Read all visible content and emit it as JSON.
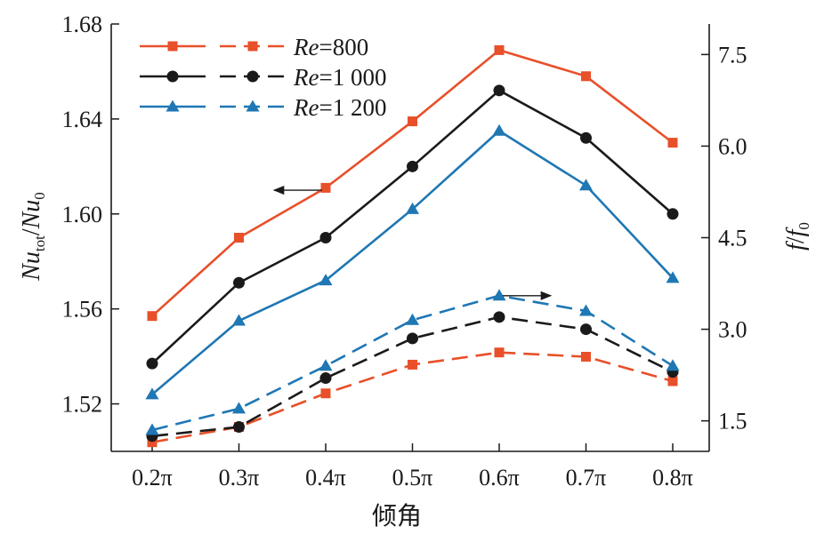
{
  "chart_data": {
    "type": "line",
    "xlabel": "倾角",
    "ylabel_left": "Nu_tot/Nu_0",
    "ylabel_right": "f/f_0",
    "categories": [
      "0.2π",
      "0.3π",
      "0.4π",
      "0.5π",
      "0.6π",
      "0.7π",
      "0.8π"
    ],
    "ylim_left": [
      1.5,
      1.68
    ],
    "ylim_right": [
      1.0,
      8.0
    ],
    "yticks_left": [
      "1.52",
      "1.56",
      "1.60",
      "1.64",
      "1.68"
    ],
    "yticks_right": [
      "1.5",
      "3.0",
      "4.5",
      "6.0",
      "7.5"
    ],
    "series": [
      {
        "name": "Re=800",
        "axis": "left",
        "style": "solid",
        "marker": "square",
        "color": "#e8502a",
        "values": [
          1.557,
          1.59,
          1.611,
          1.639,
          1.669,
          1.658,
          1.63
        ]
      },
      {
        "name": "Re=1 000",
        "axis": "left",
        "style": "solid",
        "marker": "circle",
        "color": "#1a1a1a",
        "values": [
          1.537,
          1.571,
          1.59,
          1.62,
          1.652,
          1.632,
          1.6
        ]
      },
      {
        "name": "Re=1 200",
        "axis": "left",
        "style": "solid",
        "marker": "triangle",
        "color": "#1f77b4",
        "values": [
          1.524,
          1.555,
          1.572,
          1.602,
          1.635,
          1.612,
          1.573
        ]
      },
      {
        "name": "Re=800",
        "axis": "right",
        "style": "dashed",
        "marker": "square",
        "color": "#e8502a",
        "values": [
          1.15,
          1.4,
          1.95,
          2.42,
          2.62,
          2.55,
          2.15
        ]
      },
      {
        "name": "Re=1 000",
        "axis": "right",
        "style": "dashed",
        "marker": "circle",
        "color": "#1a1a1a",
        "values": [
          1.25,
          1.4,
          2.2,
          2.85,
          3.2,
          3.0,
          2.3
        ]
      },
      {
        "name": "Re=1 200",
        "axis": "right",
        "style": "dashed",
        "marker": "triangle",
        "color": "#1f77b4",
        "values": [
          1.35,
          1.7,
          2.4,
          3.15,
          3.55,
          3.3,
          2.4
        ]
      }
    ],
    "legend": {
      "placement": "top-left",
      "entries": [
        {
          "label_prefix": "Re",
          "label_suffix": "=800",
          "marker": "square",
          "color": "#e8502a"
        },
        {
          "label_prefix": "Re",
          "label_suffix": "=1 000",
          "marker": "circle",
          "color": "#1a1a1a"
        },
        {
          "label_prefix": "Re",
          "label_suffix": "=1 200",
          "marker": "triangle",
          "color": "#1f77b4"
        }
      ]
    },
    "annotations": [
      {
        "type": "arrow",
        "direction": "left",
        "axis": "left",
        "x_index": 2,
        "y": 1.61
      },
      {
        "type": "arrow",
        "direction": "right",
        "axis": "right",
        "x_index": 4,
        "y": 3.55
      }
    ],
    "grid": false
  }
}
